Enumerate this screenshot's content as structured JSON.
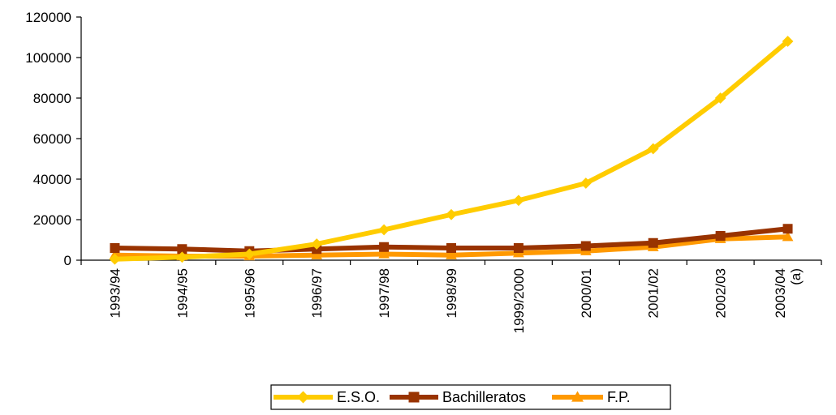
{
  "chart_data": {
    "type": "line",
    "categories": [
      "1993/94",
      "1994/95",
      "1995/96",
      "1996/97",
      "1997/98",
      "1998/99",
      "1999/2000",
      "2000/01",
      "2001/02",
      "2002/03",
      "2003/04\n(a)"
    ],
    "ylim": [
      0,
      120000
    ],
    "yticks": [
      0,
      20000,
      40000,
      60000,
      80000,
      100000,
      120000
    ],
    "ytick_labels": [
      "0",
      "20000",
      "40000",
      "60000",
      "80000",
      "100000",
      "120000"
    ],
    "grid": false,
    "legend_position": "bottom",
    "series": [
      {
        "name": "E.S.O.",
        "color": "#FFCC00",
        "marker": "diamond",
        "values": [
          500,
          1500,
          3000,
          8000,
          15000,
          22500,
          29500,
          38000,
          55000,
          80000,
          108000
        ]
      },
      {
        "name": "Bachilleratos",
        "color": "#993300",
        "marker": "square",
        "values": [
          6000,
          5500,
          4500,
          5500,
          6500,
          6000,
          6000,
          7000,
          8500,
          12000,
          15500
        ]
      },
      {
        "name": "F.P.",
        "color": "#FF9900",
        "marker": "triangle",
        "values": [
          2500,
          2000,
          2000,
          2500,
          3000,
          2500,
          3500,
          4500,
          6500,
          10500,
          11500
        ]
      }
    ]
  }
}
